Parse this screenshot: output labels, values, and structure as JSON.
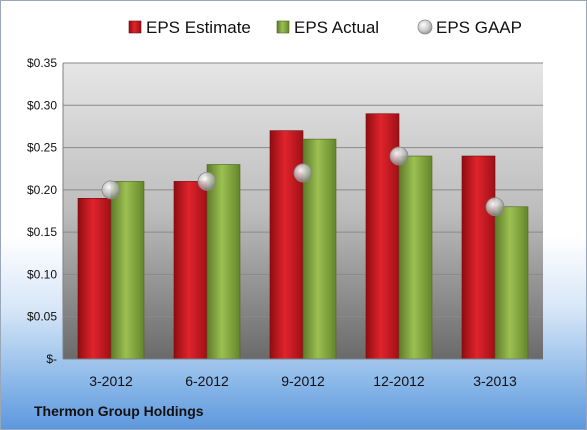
{
  "chart_data": {
    "type": "bar",
    "categories": [
      "3-2012",
      "6-2012",
      "9-2012",
      "12-2012",
      "3-2013"
    ],
    "series": [
      {
        "name": "EPS Estimate",
        "values": [
          0.19,
          0.21,
          0.27,
          0.29,
          0.24
        ],
        "color": "#c0141c",
        "kind": "bar"
      },
      {
        "name": "EPS Actual",
        "values": [
          0.21,
          0.23,
          0.26,
          0.24,
          0.18
        ],
        "color": "#7fa03a",
        "kind": "bar"
      },
      {
        "name": "EPS GAAP",
        "values": [
          0.2,
          0.21,
          0.22,
          0.24,
          0.18
        ],
        "color": "#b8b8b8",
        "kind": "marker"
      }
    ],
    "ylim": [
      0,
      0.35
    ],
    "yticks": [
      0,
      0.05,
      0.1,
      0.15,
      0.2,
      0.25,
      0.3,
      0.35
    ],
    "ytick_labels": [
      "$-",
      "$0.05",
      "$0.10",
      "$0.15",
      "$0.20",
      "$0.25",
      "$0.30",
      "$0.35"
    ],
    "grid": true,
    "legend_position": "top",
    "footer": "Thermon Group Holdings"
  }
}
